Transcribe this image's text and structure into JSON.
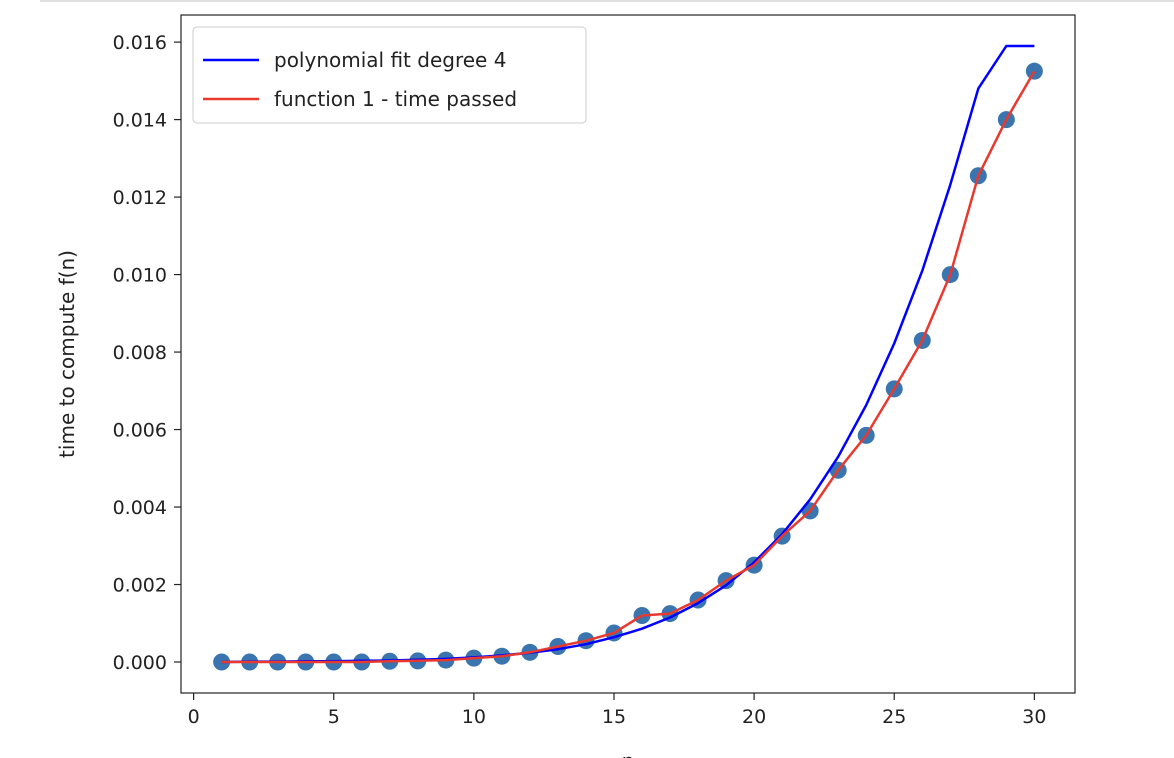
{
  "chart_data": {
    "type": "scatter",
    "xlabel": "n",
    "ylabel": "time to compute f(n)",
    "xlim": [
      -0.45,
      31.45
    ],
    "ylim": [
      -0.0008,
      0.0167
    ],
    "xticks": [
      0,
      5,
      10,
      15,
      20,
      25,
      30
    ],
    "xtick_labels": [
      "0",
      "5",
      "10",
      "15",
      "20",
      "25",
      "30"
    ],
    "yticks": [
      0.0,
      0.002,
      0.004,
      0.006,
      0.008,
      0.01,
      0.012,
      0.014,
      0.016
    ],
    "ytick_labels": [
      "0.000",
      "0.002",
      "0.004",
      "0.006",
      "0.008",
      "0.010",
      "0.012",
      "0.014",
      "0.016"
    ],
    "grid": false,
    "legend_position": "top-left",
    "x": [
      1,
      2,
      3,
      4,
      5,
      6,
      7,
      8,
      9,
      10,
      11,
      12,
      13,
      14,
      15,
      16,
      17,
      18,
      19,
      20,
      21,
      22,
      23,
      24,
      25,
      26,
      27,
      28,
      29,
      30
    ],
    "series": [
      {
        "name": "polynomial fit degree 4",
        "kind": "line",
        "color": "#0000ff",
        "values": [
          0.0,
          1e-05,
          1e-05,
          2e-05,
          2e-05,
          3e-05,
          4e-05,
          6e-05,
          8e-05,
          0.00012,
          0.00017,
          0.00024,
          0.00033,
          0.00046,
          0.00064,
          0.00086,
          0.00115,
          0.00152,
          0.00198,
          0.00257,
          0.0033,
          0.0042,
          0.0053,
          0.00663,
          0.00822,
          0.0101,
          0.01232,
          0.0148,
          0.0159,
          0.0159
        ]
      },
      {
        "name": "function 1 - time passed",
        "kind": "line",
        "color": "#e8392f",
        "values": [
          0.0,
          0.0,
          0.0,
          0.0,
          0.0,
          0.0,
          2e-05,
          3e-05,
          5e-05,
          0.0001,
          0.00015,
          0.00025,
          0.0004,
          0.00055,
          0.00075,
          0.0012,
          0.00125,
          0.0016,
          0.0021,
          0.0025,
          0.00325,
          0.0039,
          0.00495,
          0.00585,
          0.00705,
          0.0083,
          0.01,
          0.01255,
          0.014,
          0.01525
        ]
      },
      {
        "name": "",
        "kind": "points",
        "color": "#3a75af",
        "values": [
          0.0,
          0.0,
          0.0,
          0.0,
          0.0,
          0.0,
          2e-05,
          3e-05,
          5e-05,
          0.0001,
          0.00015,
          0.00025,
          0.0004,
          0.00055,
          0.00075,
          0.0012,
          0.00125,
          0.0016,
          0.0021,
          0.0025,
          0.00325,
          0.0039,
          0.00495,
          0.00585,
          0.00705,
          0.0083,
          0.01,
          0.01255,
          0.014,
          0.01525
        ]
      }
    ]
  }
}
